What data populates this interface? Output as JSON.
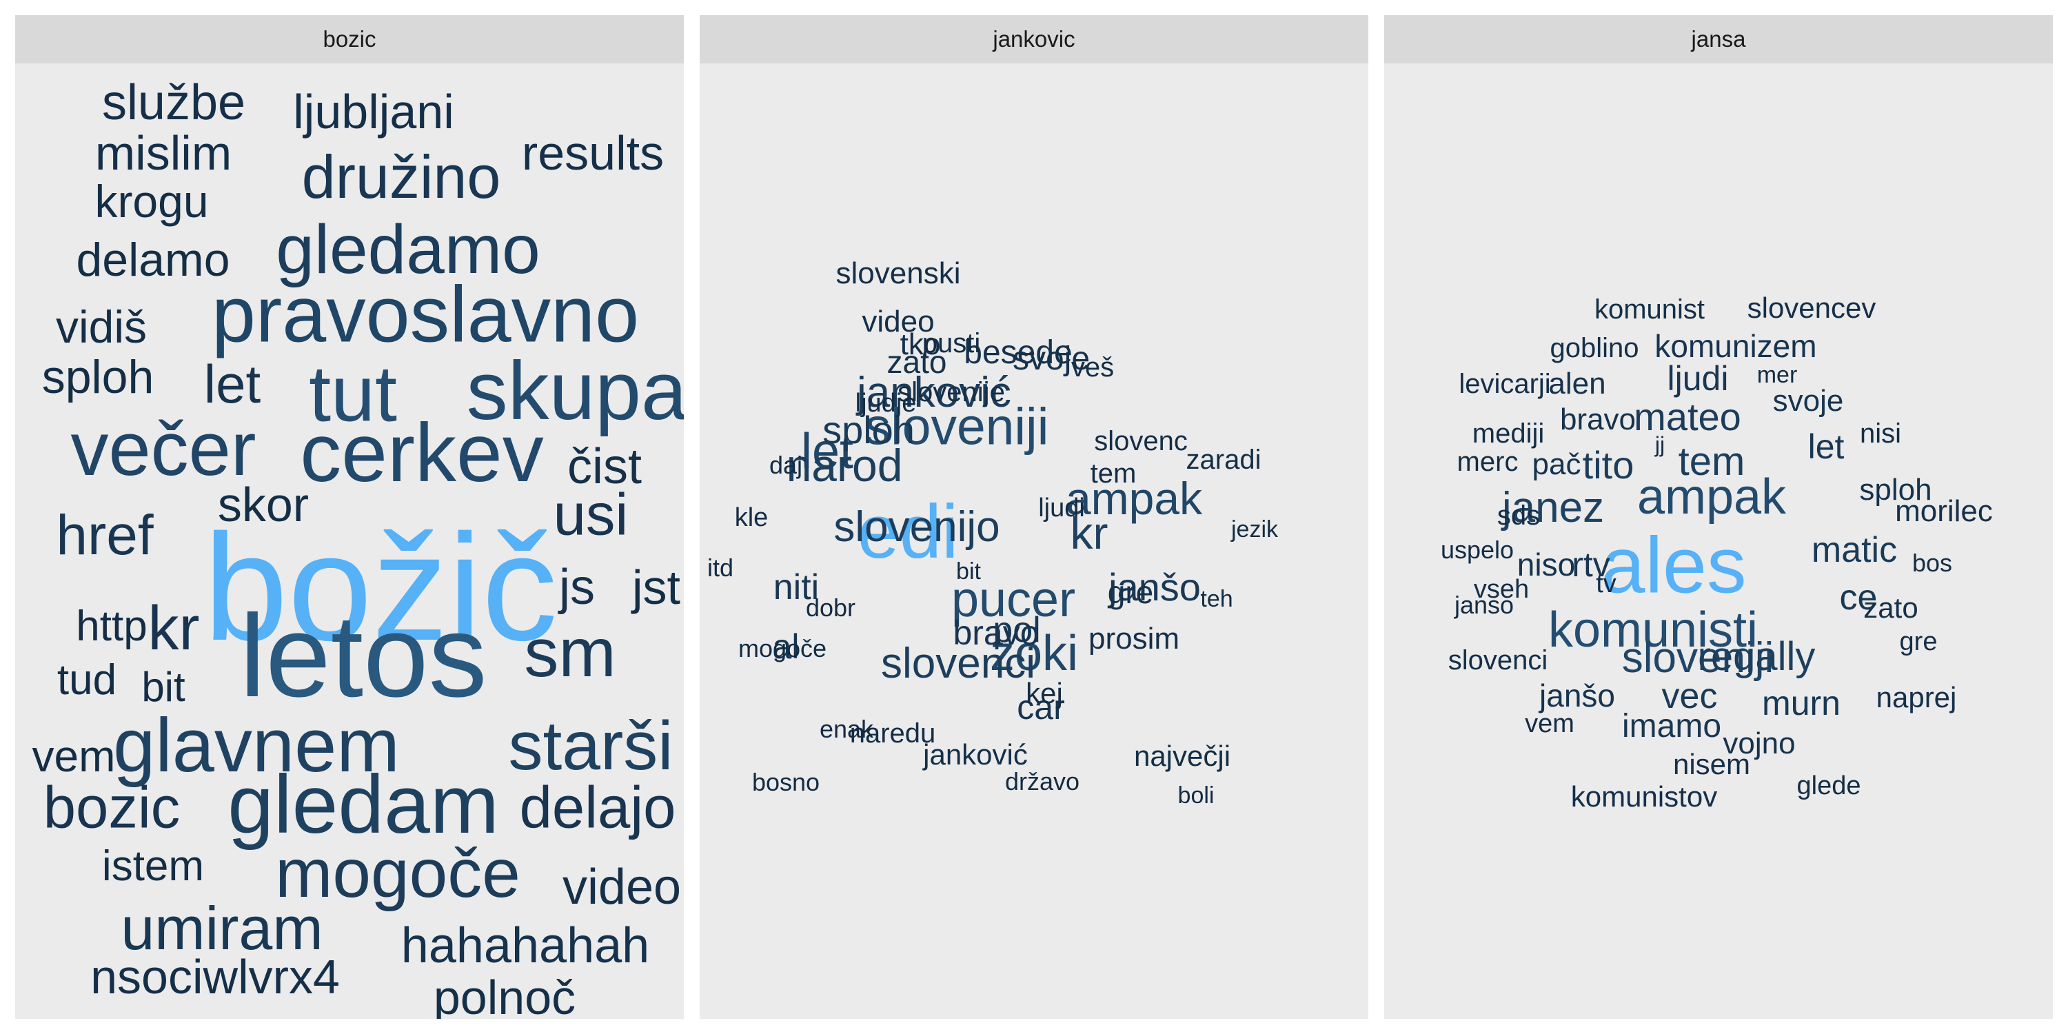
{
  "chart_data": {
    "type": "wordcloud",
    "color_scale": {
      "low": "#132b43",
      "high": "#56b1f7"
    },
    "panels": [
      {
        "label": "bozic",
        "words": [
          {
            "text": "božič",
            "freq": 1.0
          },
          {
            "text": "letos",
            "freq": 0.78
          },
          {
            "text": "skupaj",
            "freq": 0.62
          },
          {
            "text": "tut",
            "freq": 0.66
          },
          {
            "text": "pravoslavno",
            "freq": 0.56
          },
          {
            "text": "cerkev",
            "freq": 0.6
          },
          {
            "text": "večer",
            "freq": 0.55
          },
          {
            "text": "glavnem",
            "freq": 0.52
          },
          {
            "text": "starši",
            "freq": 0.5
          },
          {
            "text": "gledam",
            "freq": 0.5
          },
          {
            "text": "gledamo",
            "freq": 0.46
          },
          {
            "text": "mogoče",
            "freq": 0.45
          },
          {
            "text": "sm",
            "freq": 0.43
          },
          {
            "text": "družino",
            "freq": 0.38
          },
          {
            "text": "umiram",
            "freq": 0.4
          },
          {
            "text": "href",
            "freq": 0.37
          },
          {
            "text": "usi",
            "freq": 0.36
          },
          {
            "text": "bozic",
            "freq": 0.36
          },
          {
            "text": "delajo",
            "freq": 0.36
          },
          {
            "text": "kr",
            "freq": 0.36
          },
          {
            "text": "let",
            "freq": 0.34
          },
          {
            "text": "js",
            "freq": 0.33
          },
          {
            "text": "hahahahah",
            "freq": 0.33
          },
          {
            "text": "čist",
            "freq": 0.31
          },
          {
            "text": "video",
            "freq": 0.31
          },
          {
            "text": "results",
            "freq": 0.3
          },
          {
            "text": "ljubljani",
            "freq": 0.3
          },
          {
            "text": "službe",
            "freq": 0.3
          },
          {
            "text": "mislim",
            "freq": 0.3
          },
          {
            "text": "polnoč",
            "freq": 0.3
          },
          {
            "text": "nsociwlvrx4",
            "freq": 0.3
          },
          {
            "text": "jst",
            "freq": 0.28
          },
          {
            "text": "skor",
            "freq": 0.28
          },
          {
            "text": "delamo",
            "freq": 0.28
          },
          {
            "text": "splоh",
            "freq": 0.28
          },
          {
            "text": "vidiš",
            "freq": 0.28
          },
          {
            "text": "krogu",
            "freq": 0.28
          },
          {
            "text": "http",
            "freq": 0.27
          },
          {
            "text": "tud",
            "freq": 0.27
          },
          {
            "text": "bit",
            "freq": 0.27
          },
          {
            "text": "vem",
            "freq": 0.27
          },
          {
            "text": "istem",
            "freq": 0.27
          }
        ]
      },
      {
        "label": "jankovic",
        "words": [
          {
            "text": "edi",
            "freq": 1.0
          },
          {
            "text": "sloveniji",
            "freq": 0.62
          },
          {
            "text": "pucer",
            "freq": 0.62
          },
          {
            "text": "zoki",
            "freq": 0.58
          },
          {
            "text": "let",
            "freq": 0.55
          },
          {
            "text": "ampak",
            "freq": 0.55
          },
          {
            "text": "narod",
            "freq": 0.48
          },
          {
            "text": "kr",
            "freq": 0.5
          },
          {
            "text": "slovenijo",
            "freq": 0.46
          },
          {
            "text": "slovenci",
            "freq": 0.46
          },
          {
            "text": "janković",
            "freq": 0.45
          },
          {
            "text": "splоh",
            "freq": 0.42
          },
          {
            "text": "janšo",
            "freq": 0.4
          },
          {
            "text": "niti",
            "freq": 0.38
          },
          {
            "text": "pol",
            "freq": 0.4
          },
          {
            "text": "bravo",
            "freq": 0.36
          },
          {
            "text": "al",
            "freq": 0.36
          },
          {
            "text": "car",
            "freq": 0.36
          },
          {
            "text": "besede",
            "freq": 0.33
          },
          {
            "text": "svoje",
            "freq": 0.33
          },
          {
            "text": "zato",
            "freq": 0.33
          },
          {
            "text": "gre",
            "freq": 0.33
          },
          {
            "text": "video",
            "freq": 0.3
          },
          {
            "text": "tko",
            "freq": 0.3
          },
          {
            "text": "slovenski",
            "freq": 0.3
          },
          {
            "text": "prosim",
            "freq": 0.3
          },
          {
            "text": "kej",
            "freq": 0.28
          },
          {
            "text": "naredu",
            "freq": 0.28
          },
          {
            "text": "največji",
            "freq": 0.28
          },
          {
            "text": "janković",
            "freq": 0.3
          },
          {
            "text": "slovenije",
            "freq": 0.28
          },
          {
            "text": "slovenc",
            "freq": 0.28
          },
          {
            "text": "zaradi",
            "freq": 0.28
          },
          {
            "text": "veš",
            "freq": 0.28
          },
          {
            "text": "tem",
            "freq": 0.27
          },
          {
            "text": "ljudi",
            "freq": 0.27
          },
          {
            "text": "pusti",
            "freq": 0.27
          },
          {
            "text": "ljudje",
            "freq": 0.27
          },
          {
            "text": "daj",
            "freq": 0.26
          },
          {
            "text": "kle",
            "freq": 0.27
          },
          {
            "text": "itd",
            "freq": 0.25
          },
          {
            "text": "dobr",
            "freq": 0.26
          },
          {
            "text": "mogoče",
            "freq": 0.26
          },
          {
            "text": "enak",
            "freq": 0.26
          },
          {
            "text": "bosno",
            "freq": 0.26
          },
          {
            "text": "državo",
            "freq": 0.26
          },
          {
            "text": "boli",
            "freq": 0.26
          },
          {
            "text": "bit",
            "freq": 0.25
          },
          {
            "text": "teh",
            "freq": 0.26
          },
          {
            "text": "jezik",
            "freq": 0.26
          }
        ]
      },
      {
        "label": "jansa",
        "words": [
          {
            "text": "ales",
            "freq": 1.0
          },
          {
            "text": "komunisti",
            "freq": 0.65
          },
          {
            "text": "ampak",
            "freq": 0.62
          },
          {
            "text": "sloveniji",
            "freq": 0.55
          },
          {
            "text": "janez",
            "freq": 0.52
          },
          {
            "text": "regally",
            "freq": 0.48
          },
          {
            "text": "tem",
            "freq": 0.48
          },
          {
            "text": "mateo",
            "freq": 0.45
          },
          {
            "text": "tito",
            "freq": 0.45
          },
          {
            "text": "matic",
            "freq": 0.42
          },
          {
            "text": "vec",
            "freq": 0.42
          },
          {
            "text": "murn",
            "freq": 0.4
          },
          {
            "text": "ce",
            "freq": 0.4
          },
          {
            "text": "imamo",
            "freq": 0.38
          },
          {
            "text": "rtv",
            "freq": 0.38
          },
          {
            "text": "ljudi",
            "freq": 0.38
          },
          {
            "text": "let",
            "freq": 0.38
          },
          {
            "text": "komunizem",
            "freq": 0.35
          },
          {
            "text": "janšo",
            "freq": 0.35
          },
          {
            "text": "niso",
            "freq": 0.35
          },
          {
            "text": "pač",
            "freq": 0.35
          },
          {
            "text": "svoje",
            "freq": 0.35
          },
          {
            "text": "alen",
            "freq": 0.33
          },
          {
            "text": "vojno",
            "freq": 0.33
          },
          {
            "text": "bravo",
            "freq": 0.33
          },
          {
            "text": "splоh",
            "freq": 0.33
          },
          {
            "text": "nisem",
            "freq": 0.31
          },
          {
            "text": "zato",
            "freq": 0.31
          },
          {
            "text": "morilec",
            "freq": 0.31
          },
          {
            "text": "naprej",
            "freq": 0.3
          },
          {
            "text": "komunistov",
            "freq": 0.3
          },
          {
            "text": "slovencev",
            "freq": 0.3
          },
          {
            "text": "komunist",
            "freq": 0.3
          },
          {
            "text": "goblino",
            "freq": 0.3
          },
          {
            "text": "levicarji",
            "freq": 0.29
          },
          {
            "text": "slovenci",
            "freq": 0.29
          },
          {
            "text": "sds",
            "freq": 0.29
          },
          {
            "text": "mediji",
            "freq": 0.28
          },
          {
            "text": "merc",
            "freq": 0.28
          },
          {
            "text": "nisi",
            "freq": 0.28
          },
          {
            "text": "vseh",
            "freq": 0.28
          },
          {
            "text": "tv",
            "freq": 0.28
          },
          {
            "text": "vem",
            "freq": 0.27
          },
          {
            "text": "glede",
            "freq": 0.27
          },
          {
            "text": "gre",
            "freq": 0.27
          },
          {
            "text": "bos",
            "freq": 0.27
          },
          {
            "text": "uspelo",
            "freq": 0.26
          },
          {
            "text": "janso",
            "freq": 0.26
          },
          {
            "text": "jj",
            "freq": 0.26
          },
          {
            "text": "mer",
            "freq": 0.26
          }
        ]
      }
    ]
  }
}
